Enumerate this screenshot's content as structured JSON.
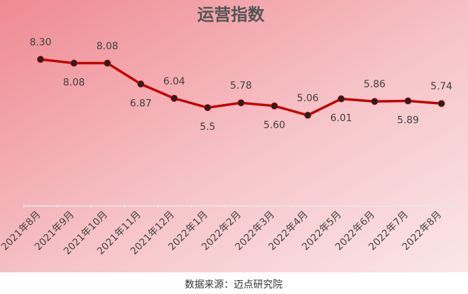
{
  "chart_data": {
    "type": "line",
    "title": "运营指数",
    "categories": [
      "2021年8月",
      "2021年9月",
      "2021年10月",
      "2021年11月",
      "2021年12月",
      "2022年1月",
      "2022年2月",
      "2022年3月",
      "2022年4月",
      "2022年5月",
      "2022年6月",
      "2022年7月",
      "2022年8月"
    ],
    "values": [
      8.3,
      8.08,
      8.08,
      6.87,
      6.04,
      5.5,
      5.78,
      5.6,
      5.06,
      6.01,
      5.86,
      5.89,
      5.74
    ],
    "value_labels": [
      "8.30",
      "8.08",
      "8.08",
      "6.87",
      "6.04",
      "5.5",
      "5.78",
      "5.60",
      "5.06",
      "6.01",
      "5.86",
      "5.89",
      "5.74"
    ],
    "color": "#c00000",
    "source": "数据来源：迈点研究院"
  }
}
